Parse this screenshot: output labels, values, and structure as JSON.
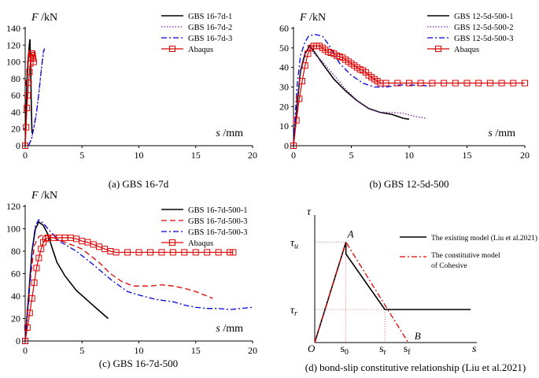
{
  "colors": {
    "black": "#000000",
    "purple": "#7b1fa2",
    "blue": "#0000dd",
    "red": "#e00000"
  },
  "chart_data": [
    {
      "type": "line",
      "caption": "(a) GBS 16-7d",
      "ylabel_var": "F",
      "ylabel_unit": " /kN",
      "xlabel_var": "s",
      "xlabel_unit": " /mm",
      "xlim": [
        0,
        20
      ],
      "ylim": [
        0,
        140
      ],
      "xticks": [
        0,
        5,
        10,
        15,
        20
      ],
      "yticks": [
        0,
        20,
        40,
        60,
        80,
        100,
        120,
        140
      ],
      "series": [
        {
          "name": "GBS 16-7d-1",
          "style": "solid-black",
          "points": [
            [
              0,
              0
            ],
            [
              0.08,
              40
            ],
            [
              0.15,
              75
            ],
            [
              0.25,
              100
            ],
            [
              0.35,
              118
            ],
            [
              0.42,
              127
            ],
            [
              0.5,
              80
            ],
            [
              0.55,
              40
            ],
            [
              0.6,
              15
            ]
          ]
        },
        {
          "name": "GBS 16-7d-2",
          "style": "dotted-purple",
          "points": [
            [
              0.2,
              0
            ],
            [
              0.5,
              5
            ],
            [
              0.9,
              30
            ],
            [
              1.2,
              60
            ],
            [
              1.4,
              90
            ],
            [
              1.6,
              110
            ],
            [
              1.7,
              115
            ]
          ]
        },
        {
          "name": "GBS 16-7d-3",
          "style": "dashdot-blue",
          "points": [
            [
              0.3,
              0
            ],
            [
              0.6,
              10
            ],
            [
              1.0,
              40
            ],
            [
              1.3,
              75
            ],
            [
              1.5,
              100
            ],
            [
              1.6,
              112
            ],
            [
              1.7,
              116
            ]
          ]
        },
        {
          "name": "Abaqus",
          "style": "square-red",
          "points": [
            [
              0,
              0
            ],
            [
              0.08,
              22
            ],
            [
              0.15,
              45
            ],
            [
              0.22,
              60
            ],
            [
              0.3,
              75
            ],
            [
              0.38,
              88
            ],
            [
              0.45,
              98
            ],
            [
              0.5,
              105
            ],
            [
              0.55,
              110
            ],
            [
              0.6,
              110
            ],
            [
              0.65,
              108
            ],
            [
              0.7,
              104
            ],
            [
              0.75,
              100
            ]
          ]
        }
      ]
    },
    {
      "type": "line",
      "caption": "(b) GBS 12-5d-500",
      "ylabel_var": "F",
      "ylabel_unit": " /kN",
      "xlabel_var": "s",
      "xlabel_unit": " /mm",
      "xlim": [
        0,
        20
      ],
      "ylim": [
        0,
        60
      ],
      "xticks": [
        0,
        5,
        10,
        15,
        20
      ],
      "yticks": [
        0,
        10,
        20,
        30,
        40,
        50,
        60
      ],
      "series": [
        {
          "name": "GBS 12-5d-500-1",
          "style": "solid-black",
          "points": [
            [
              0,
              0
            ],
            [
              0.3,
              20
            ],
            [
              0.6,
              38
            ],
            [
              1,
              47
            ],
            [
              1.4,
              51
            ],
            [
              1.8,
              48
            ],
            [
              2.5,
              42
            ],
            [
              3.5,
              34
            ],
            [
              4.5,
              28
            ],
            [
              5.5,
              23
            ],
            [
              6.5,
              19
            ],
            [
              7.5,
              17
            ],
            [
              8.5,
              16
            ],
            [
              9.5,
              14
            ],
            [
              10,
              13.5
            ]
          ]
        },
        {
          "name": "GBS 12-5d-500-2",
          "style": "dotted-purple",
          "points": [
            [
              0,
              0
            ],
            [
              0.3,
              22
            ],
            [
              0.6,
              39
            ],
            [
              1,
              48
            ],
            [
              1.4,
              50
            ],
            [
              1.8,
              47
            ],
            [
              2.5,
              43
            ],
            [
              3.5,
              36
            ],
            [
              4.5,
              29
            ],
            [
              5.5,
              23
            ],
            [
              6.5,
              19
            ],
            [
              7.5,
              17
            ],
            [
              8.5,
              17
            ],
            [
              9.5,
              16.5
            ],
            [
              10.5,
              15
            ],
            [
              11.5,
              14
            ]
          ]
        },
        {
          "name": "GBS 12-5d-500-3",
          "style": "dashdot-blue",
          "points": [
            [
              0,
              0
            ],
            [
              0.3,
              30
            ],
            [
              0.6,
              46
            ],
            [
              1,
              53
            ],
            [
              1.3,
              56
            ],
            [
              1.8,
              57
            ],
            [
              2.5,
              56
            ],
            [
              3,
              52
            ],
            [
              4,
              42
            ],
            [
              5,
              36
            ],
            [
              6,
              32
            ],
            [
              7,
              30
            ],
            [
              8,
              30
            ],
            [
              9,
              31
            ],
            [
              10,
              31
            ],
            [
              12,
              30.5
            ]
          ]
        },
        {
          "name": "Abaqus",
          "style": "square-red",
          "points": [
            [
              0,
              0
            ],
            [
              0.25,
              13
            ],
            [
              0.5,
              24
            ],
            [
              0.75,
              33
            ],
            [
              1,
              41
            ],
            [
              1.25,
              47
            ],
            [
              1.5,
              50
            ],
            [
              1.75,
              51
            ],
            [
              2,
              51
            ],
            [
              2.25,
              51
            ],
            [
              2.5,
              50
            ],
            [
              2.75,
              49
            ],
            [
              3,
              48
            ],
            [
              3.25,
              47.5
            ],
            [
              3.5,
              47
            ],
            [
              3.75,
              46
            ],
            [
              4,
              45.5
            ],
            [
              4.25,
              45
            ],
            [
              4.5,
              44
            ],
            [
              4.75,
              43
            ],
            [
              5,
              42
            ],
            [
              5.25,
              41
            ],
            [
              5.5,
              40
            ],
            [
              5.75,
              39
            ],
            [
              6,
              38.5
            ],
            [
              6.25,
              37.5
            ],
            [
              6.5,
              36
            ],
            [
              6.75,
              35
            ],
            [
              7,
              34
            ],
            [
              7.25,
              33
            ],
            [
              7.5,
              32
            ],
            [
              8,
              32
            ],
            [
              9,
              32
            ],
            [
              10,
              32
            ],
            [
              11,
              32
            ],
            [
              12,
              32
            ],
            [
              13,
              32
            ],
            [
              14,
              32
            ],
            [
              15,
              32
            ],
            [
              16,
              32
            ],
            [
              17,
              32
            ],
            [
              18,
              32
            ],
            [
              19,
              32
            ],
            [
              20,
              32
            ]
          ]
        }
      ]
    },
    {
      "type": "line",
      "caption": "(c) GBS 16-7d-500",
      "ylabel_var": "F",
      "ylabel_unit": " /kN",
      "xlabel_var": "s",
      "xlabel_unit": " /mm",
      "xlim": [
        0,
        20
      ],
      "ylim": [
        0,
        120
      ],
      "xticks": [
        0,
        5,
        10,
        15,
        20
      ],
      "yticks": [
        0,
        20,
        40,
        60,
        80,
        100,
        120
      ],
      "series": [
        {
          "name": "GBS 16-7d-500-1",
          "style": "solid-black",
          "points": [
            [
              0,
              0
            ],
            [
              0.3,
              40
            ],
            [
              0.6,
              80
            ],
            [
              0.9,
              100
            ],
            [
              1.2,
              106
            ],
            [
              1.6,
              103
            ],
            [
              2,
              95
            ],
            [
              2.4,
              82
            ],
            [
              2.8,
              70
            ],
            [
              3.5,
              58
            ],
            [
              4.5,
              45
            ],
            [
              5.5,
              36
            ],
            [
              6.5,
              27
            ],
            [
              7.3,
              20
            ]
          ]
        },
        {
          "name": "GBS 16-7d-500-3",
          "style": "dashed-red",
          "points": [
            [
              0,
              0
            ],
            [
              0.4,
              50
            ],
            [
              0.8,
              85
            ],
            [
              1.2,
              93
            ],
            [
              1.6,
              95
            ],
            [
              2.5,
              92
            ],
            [
              3.5,
              88
            ],
            [
              5,
              82
            ],
            [
              6.5,
              70
            ],
            [
              7.5,
              60
            ],
            [
              8.5,
              53
            ],
            [
              9.5,
              49
            ],
            [
              11,
              49
            ],
            [
              12,
              50
            ],
            [
              13,
              49
            ],
            [
              14,
              47
            ],
            [
              15,
              44
            ],
            [
              16,
              40
            ],
            [
              16.5,
              38
            ]
          ]
        },
        {
          "name": "GBS 16-7d-500-3",
          "style": "dashdot-blue",
          "points": [
            [
              0,
              0
            ],
            [
              0.3,
              35
            ],
            [
              0.6,
              80
            ],
            [
              0.9,
              103
            ],
            [
              1.2,
              108
            ],
            [
              1.6,
              105
            ],
            [
              2,
              100
            ],
            [
              3,
              89
            ],
            [
              4.5,
              80
            ],
            [
              6,
              68
            ],
            [
              7.5,
              55
            ],
            [
              9,
              44
            ],
            [
              10,
              41
            ],
            [
              11.5,
              37
            ],
            [
              13,
              35
            ],
            [
              14,
              32
            ],
            [
              15,
              30
            ],
            [
              16,
              29
            ],
            [
              17,
              29
            ],
            [
              18,
              28
            ],
            [
              19,
              29
            ],
            [
              20,
              30
            ]
          ]
        },
        {
          "name": "Abaqus",
          "style": "square-red",
          "points": [
            [
              0,
              0
            ],
            [
              0.2,
              12
            ],
            [
              0.4,
              25
            ],
            [
              0.6,
              38
            ],
            [
              0.8,
              52
            ],
            [
              1,
              65
            ],
            [
              1.2,
              74
            ],
            [
              1.4,
              82
            ],
            [
              1.6,
              88
            ],
            [
              1.8,
              91
            ],
            [
              2,
              92
            ],
            [
              2.5,
              92
            ],
            [
              3,
              92
            ],
            [
              3.5,
              92
            ],
            [
              4,
              92
            ],
            [
              4.5,
              91
            ],
            [
              5,
              89
            ],
            [
              5.5,
              88
            ],
            [
              6,
              86
            ],
            [
              6.5,
              84
            ],
            [
              7,
              82
            ],
            [
              7.5,
              80
            ],
            [
              8,
              79
            ],
            [
              9,
              79
            ],
            [
              10,
              79
            ],
            [
              11,
              79
            ],
            [
              12,
              79
            ],
            [
              13,
              79
            ],
            [
              14,
              79
            ],
            [
              15,
              79
            ],
            [
              16,
              79
            ],
            [
              17,
              79
            ],
            [
              18,
              79
            ],
            [
              18.3,
              79
            ]
          ]
        }
      ]
    },
    {
      "type": "line",
      "caption": "(d) bond-slip constitutive relationship (Liu et al.2021)",
      "yaxis_label": "τ",
      "xaxis_label": "s",
      "origin": "O",
      "y_marks": {
        "tau_u": "τ",
        "tau_u_sub": "u",
        "tau_r": "τ",
        "tau_r_sub": "r"
      },
      "x_marks": {
        "s0": "s",
        "s0_sub": "0",
        "sr": "s",
        "sr_sub": "r",
        "sf": "s",
        "sf_sub": "f"
      },
      "points_labels": {
        "A": "A",
        "B": "B"
      },
      "values": {
        "tau_u": 0.85,
        "tau_r": 0.28,
        "s0": 0.2,
        "sr": 0.45,
        "sf": 0.6,
        "xmax": 1.0
      },
      "series": [
        {
          "name": "The existing model (Liu et al.2021)",
          "style": "solid-black"
        },
        {
          "name_line1": "The constitutive model",
          "name_line2": "of Cohesive",
          "style": "dashdot-red"
        }
      ]
    }
  ]
}
